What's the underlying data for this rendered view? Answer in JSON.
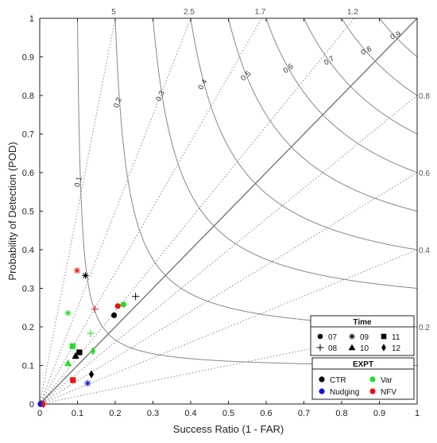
{
  "chart_data": {
    "type": "scatter",
    "title": "",
    "xlabel": "Success Ratio (1 - FAR)",
    "ylabel": "Probability of Detection (POD)",
    "xlim": [
      0,
      1
    ],
    "ylim": [
      0,
      1
    ],
    "x_ticks": [
      "0",
      "0.1",
      "0.2",
      "0.3",
      "0.4",
      "0.5",
      "0.6",
      "0.7",
      "0.8",
      "0.9",
      "1"
    ],
    "y_ticks": [
      "0",
      "0.1",
      "0.2",
      "0.3",
      "0.4",
      "0.5",
      "0.6",
      "0.7",
      "0.8",
      "0.9",
      "1"
    ],
    "csi_contours": [
      0.1,
      0.2,
      0.3,
      0.4,
      0.5,
      0.6,
      0.7,
      0.8,
      0.9
    ],
    "csi_labels": [
      "0.1",
      "0.2",
      "0.3",
      "0.4",
      "0.5",
      "0.6",
      "0.7",
      "0.8",
      "0.9"
    ],
    "bias_lines": [
      5,
      2.5,
      1.7,
      1.2,
      0.8,
      0.6,
      0.4,
      0.2
    ],
    "bias_top_labels": [
      "5",
      "2.5",
      "1.7",
      "1.2"
    ],
    "bias_right_labels": [
      "0.8",
      "0.6",
      "0.4",
      "0.2"
    ],
    "legend_time": {
      "title": "Time",
      "entries": [
        {
          "label": "07",
          "marker": "circle"
        },
        {
          "label": "09",
          "marker": "asterisk"
        },
        {
          "label": "11",
          "marker": "square"
        },
        {
          "label": "08",
          "marker": "plus"
        },
        {
          "label": "10",
          "marker": "triangle"
        },
        {
          "label": "12",
          "marker": "diamond"
        }
      ]
    },
    "legend_expt": {
      "title": "EXPT",
      "entries": [
        {
          "label": "CTR",
          "color": "#000000"
        },
        {
          "label": "Var",
          "color": "#22dd22"
        },
        {
          "label": "Nudging",
          "color": "#1010dd"
        },
        {
          "label": "NFV",
          "color": "#ee1111"
        }
      ]
    },
    "points": [
      {
        "expt": "CTR",
        "time": "07",
        "x": 0.197,
        "y": 0.23
      },
      {
        "expt": "CTR",
        "time": "08",
        "x": 0.254,
        "y": 0.279
      },
      {
        "expt": "CTR",
        "time": "09",
        "x": 0.121,
        "y": 0.333
      },
      {
        "expt": "CTR",
        "time": "10",
        "x": 0.095,
        "y": 0.125
      },
      {
        "expt": "CTR",
        "time": "11",
        "x": 0.105,
        "y": 0.134
      },
      {
        "expt": "CTR",
        "time": "12",
        "x": 0.137,
        "y": 0.077
      },
      {
        "expt": "Var",
        "time": "07",
        "x": 0.222,
        "y": 0.258
      },
      {
        "expt": "Var",
        "time": "08",
        "x": 0.135,
        "y": 0.183
      },
      {
        "expt": "Var",
        "time": "09",
        "x": 0.075,
        "y": 0.236
      },
      {
        "expt": "Var",
        "time": "10",
        "x": 0.075,
        "y": 0.106
      },
      {
        "expt": "Var",
        "time": "11",
        "x": 0.087,
        "y": 0.15
      },
      {
        "expt": "Var",
        "time": "12",
        "x": 0.141,
        "y": 0.137
      },
      {
        "expt": "Nudging",
        "time": "07",
        "x": 0.002,
        "y": 0.0
      },
      {
        "expt": "Nudging",
        "time": "09",
        "x": 0.127,
        "y": 0.054
      },
      {
        "expt": "Nudging",
        "time": "11",
        "x": 0.006,
        "y": 0.0
      },
      {
        "expt": "NFV",
        "time": "07",
        "x": 0.207,
        "y": 0.254
      },
      {
        "expt": "NFV",
        "time": "08",
        "x": 0.146,
        "y": 0.246
      },
      {
        "expt": "NFV",
        "time": "09",
        "x": 0.099,
        "y": 0.346
      },
      {
        "expt": "NFV",
        "time": "11",
        "x": 0.088,
        "y": 0.062
      },
      {
        "expt": "NFV",
        "time": "12",
        "x": 0.01,
        "y": 0.0
      }
    ]
  }
}
